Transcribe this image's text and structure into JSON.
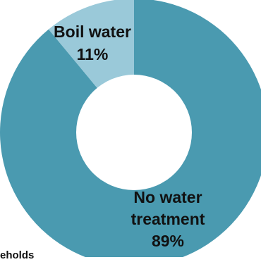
{
  "chart_data": {
    "type": "pie",
    "style": "donut",
    "title": "",
    "slices": [
      {
        "label": "No water treatment",
        "label_lines": [
          "No water",
          "treatment"
        ],
        "value": 89,
        "value_label": "89%",
        "color": "#4a9ab0"
      },
      {
        "label": "Boil water",
        "label_lines": [
          "Boil water"
        ],
        "value": 11,
        "value_label": "11%",
        "color": "#9ac9d9"
      }
    ],
    "start_angle_deg": 0,
    "direction": "clockwise",
    "legend": "none"
  },
  "partial_text": "eholds"
}
